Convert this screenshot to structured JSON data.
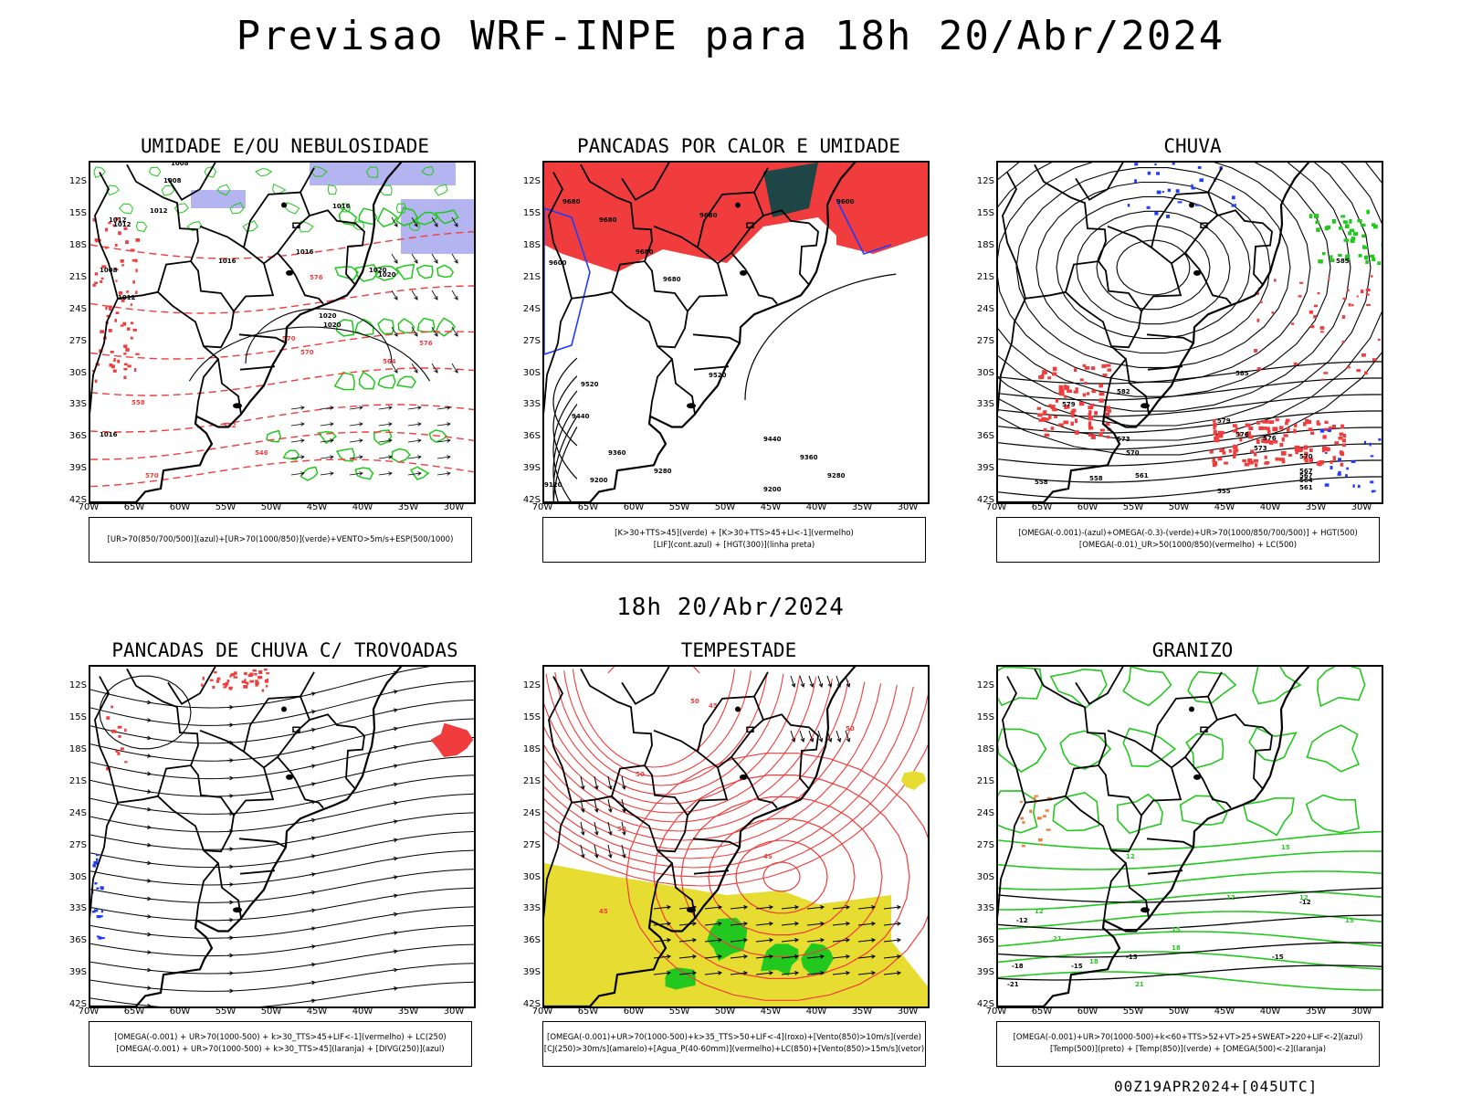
{
  "title": "Previsao WRF-INPE  para 18h 20/Abr/2024",
  "subtitle": "18h 20/Abr/2024",
  "footer": "00Z19APR2024+[045UTC]",
  "lat_labels": [
    "12S",
    "15S",
    "18S",
    "21S",
    "24S",
    "27S",
    "30S",
    "33S",
    "36S",
    "39S",
    "42S"
  ],
  "lon_labels": [
    "70W",
    "65W",
    "60W",
    "55W",
    "50W",
    "45W",
    "40W",
    "35W",
    "30W"
  ],
  "colors": {
    "red": "#f03c3c",
    "green": "#22c81e",
    "blue": "#1e3cff",
    "lavender": "#b4b4f0",
    "yellow": "#e6dc32",
    "dark_teal": "#1e4646",
    "orange": "#e6823c"
  },
  "panels": [
    {
      "title": "UMIDADE E/OU NEBULOSIDADE",
      "legend": [
        "[UR>70(850/700/500)](azul)+[UR>70(1000/850)](verde)+VENTO>5m/s+ESP(500/1000)"
      ],
      "labels": [
        "1008",
        "1008",
        "1012",
        "1012",
        "1016",
        "1016",
        "1016",
        "1020",
        "1020",
        "1020",
        "1020",
        "570",
        "576",
        "576",
        "570",
        "564",
        "558",
        "552",
        "546",
        "570",
        "1016",
        "1012",
        "1008",
        "1012"
      ]
    },
    {
      "title": "PANCADAS POR CALOR E UMIDADE",
      "legend": [
        "[K>30+TTS>45](verde)  +  [K>30+TTS>45+LI<-1](vermelho)",
        "[LIF](cont.azul)  +  [HGT(300)](linha preta)"
      ],
      "labels": [
        "9680",
        "9680",
        "9680",
        "9680",
        "9680",
        "9600",
        "9600",
        "9520",
        "9520",
        "9440",
        "9440",
        "9360",
        "9360",
        "9280",
        "9280",
        "9200",
        "9200",
        "9120"
      ]
    },
    {
      "title": "CHUVA",
      "legend": [
        "[OMEGA(-0.001)-(azul)+OMEGA(-0.3)-(verde)+UR>70(1000/850/700/500)] + HGT(500)",
        "[OMEGA(-0.01)_UR>50(1000/850)(vermelho) + LC(500)"
      ],
      "labels": [
        "585",
        "585",
        "582",
        "579",
        "579",
        "576",
        "576",
        "573",
        "573",
        "570",
        "570",
        "567",
        "567",
        "564",
        "561",
        "561",
        "558",
        "558",
        "555"
      ]
    },
    {
      "title": "PANCADAS DE CHUVA C/ TROVOADAS",
      "legend": [
        "[OMEGA(-0.001) + UR>70(1000-500) + k>30_TTS>45+LIF<-1](vermelho) + LC(250)",
        "[OMEGA(-0.001) + UR>70(1000-500) + k>30_TTS>45](laranja) + [DIVG(250)](azul)"
      ],
      "labels": []
    },
    {
      "title": "TEMPESTADE",
      "legend": [
        "[OMEGA(-0.001)+UR>70(1000-500)+k>35_TTS>50+LIF<-4](roxo)+[Vento(850)>10m/s](verde)",
        "[CJ(250)>30m/s](amarelo)+[Agua_P(40-60mm)](vermelho)+LC(850)+[Vento(850)>15m/s](vetor)"
      ],
      "labels": [
        "50",
        "50",
        "50",
        "50",
        "45",
        "45",
        "45"
      ]
    },
    {
      "title": "GRANIZO",
      "legend": [
        "[OMEGA(-0.001)+UR>70(1000-500)+k<60+TTS>52+VT>25+SWEAT>220+LIF<-2](azul)",
        "[Temp(500)](preto) + [Temp(850)](verde) + [OMEGA(500)<-2](laranja)"
      ],
      "labels": [
        "-12",
        "-12",
        "-15",
        "-15",
        "-15",
        "-18",
        "-21",
        "12",
        "12",
        "12",
        "15",
        "15",
        "18",
        "18",
        "21",
        "21",
        "12",
        "15"
      ]
    }
  ]
}
